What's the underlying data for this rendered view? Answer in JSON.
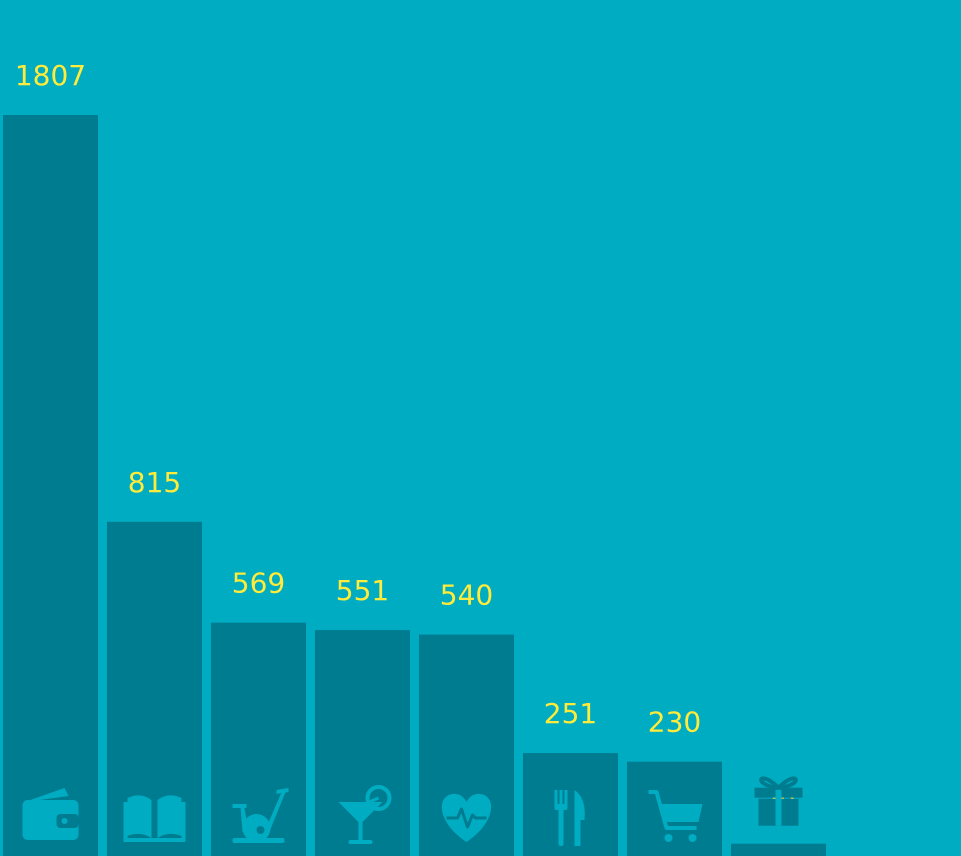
{
  "colors": {
    "background": "#00acc1",
    "bar": "#007c91",
    "label": "#ffeb3b"
  },
  "chart_data": {
    "type": "bar",
    "title": "",
    "xlabel": "",
    "ylabel": "",
    "grid": false,
    "categories": [
      "wallet",
      "book",
      "exercise-bike",
      "cocktail",
      "heart-pulse",
      "restaurant",
      "cart",
      "gift"
    ],
    "values": [
      1807,
      815,
      569,
      551,
      540,
      251,
      230,
      30
    ],
    "icons": [
      "wallet-icon",
      "book-icon",
      "exercise-bike-icon",
      "cocktail-icon",
      "heart-pulse-icon",
      "restaurant-icon",
      "cart-icon",
      "gift-icon"
    ]
  }
}
